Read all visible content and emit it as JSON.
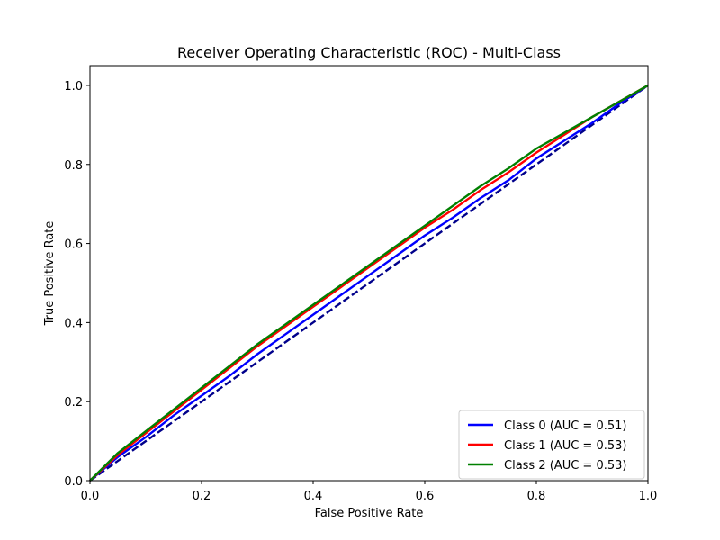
{
  "chart_data": {
    "type": "line",
    "title": "Receiver Operating Characteristic (ROC) - Multi-Class",
    "xlabel": "False Positive Rate",
    "ylabel": "True Positive Rate",
    "xlim": [
      0.0,
      1.0
    ],
    "ylim": [
      0.0,
      1.05
    ],
    "x_ticks": [
      0.0,
      0.2,
      0.4,
      0.6,
      0.8,
      1.0
    ],
    "y_ticks": [
      0.0,
      0.2,
      0.4,
      0.6,
      0.8,
      1.0
    ],
    "x_tick_labels": [
      "0.0",
      "0.2",
      "0.4",
      "0.6",
      "0.8",
      "1.0"
    ],
    "y_tick_labels": [
      "0.0",
      "0.2",
      "0.4",
      "0.6",
      "0.8",
      "1.0"
    ],
    "grid": false,
    "legend_position": "lower-right",
    "series": [
      {
        "name": "Class 0 (AUC = 0.51)",
        "color": "#0000ff",
        "style": "solid",
        "x": [
          0.0,
          0.05,
          0.1,
          0.15,
          0.2,
          0.25,
          0.3,
          0.35,
          0.4,
          0.45,
          0.5,
          0.55,
          0.6,
          0.65,
          0.7,
          0.75,
          0.8,
          0.85,
          0.9,
          0.95,
          1.0
        ],
        "y": [
          0.0,
          0.06,
          0.11,
          0.165,
          0.215,
          0.265,
          0.32,
          0.37,
          0.42,
          0.47,
          0.52,
          0.57,
          0.62,
          0.665,
          0.715,
          0.76,
          0.815,
          0.86,
          0.905,
          0.955,
          1.0
        ]
      },
      {
        "name": "Class 1 (AUC = 0.53)",
        "color": "#ff0000",
        "style": "solid",
        "x": [
          0.0,
          0.05,
          0.1,
          0.15,
          0.2,
          0.25,
          0.3,
          0.35,
          0.4,
          0.45,
          0.5,
          0.55,
          0.6,
          0.65,
          0.7,
          0.75,
          0.8,
          0.85,
          0.9,
          0.95,
          1.0
        ],
        "y": [
          0.0,
          0.065,
          0.12,
          0.175,
          0.23,
          0.285,
          0.34,
          0.39,
          0.44,
          0.49,
          0.54,
          0.59,
          0.64,
          0.685,
          0.735,
          0.78,
          0.83,
          0.875,
          0.92,
          0.96,
          1.0
        ]
      },
      {
        "name": "Class 2 (AUC = 0.53)",
        "color": "#008000",
        "style": "solid",
        "x": [
          0.0,
          0.05,
          0.1,
          0.15,
          0.2,
          0.25,
          0.3,
          0.35,
          0.4,
          0.45,
          0.5,
          0.55,
          0.6,
          0.65,
          0.7,
          0.75,
          0.8,
          0.85,
          0.9,
          0.95,
          1.0
        ],
        "y": [
          0.0,
          0.07,
          0.125,
          0.18,
          0.235,
          0.29,
          0.345,
          0.395,
          0.445,
          0.495,
          0.545,
          0.595,
          0.645,
          0.695,
          0.745,
          0.79,
          0.84,
          0.88,
          0.92,
          0.96,
          1.0
        ]
      },
      {
        "name": "",
        "color": "#00008b",
        "style": "dashed",
        "x": [
          0.0,
          1.0
        ],
        "y": [
          0.0,
          1.0
        ]
      }
    ]
  }
}
